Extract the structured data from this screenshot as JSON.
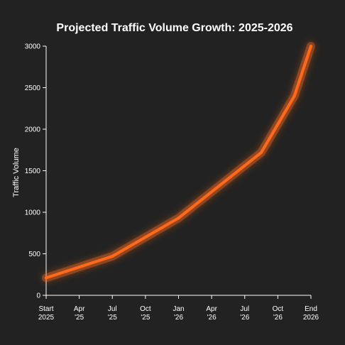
{
  "chart_data": {
    "type": "line",
    "title": "Projected Traffic Volume Growth: 2025-2026",
    "xlabel": "",
    "ylabel": "Traffic Volume",
    "ylim": [
      0,
      3000
    ],
    "y_ticks": [
      0,
      500,
      1000,
      1500,
      2000,
      2500,
      3000
    ],
    "grid": false,
    "line_color": "#ff6a1a",
    "background_color": "#222222",
    "x_ticks": [
      {
        "line1": "Start",
        "line2": "2025"
      },
      {
        "line1": "Apr",
        "line2": "'25"
      },
      {
        "line1": "Jul",
        "line2": "'25"
      },
      {
        "line1": "Oct",
        "line2": "'25"
      },
      {
        "line1": "Jan",
        "line2": "'26"
      },
      {
        "line1": "Apr",
        "line2": "'26"
      },
      {
        "line1": "Jul",
        "line2": "'26"
      },
      {
        "line1": "Oct",
        "line2": "'26"
      },
      {
        "line1": "End",
        "line2": "2026"
      }
    ],
    "series": [
      {
        "points": [
          {
            "x": 0,
            "y": 210
          },
          {
            "x": 2,
            "y": 470
          },
          {
            "x": 4,
            "y": 930
          },
          {
            "x": 6.5,
            "y": 1720
          },
          {
            "x": 7.5,
            "y": 2400
          },
          {
            "x": 8,
            "y": 3000
          }
        ]
      }
    ]
  }
}
